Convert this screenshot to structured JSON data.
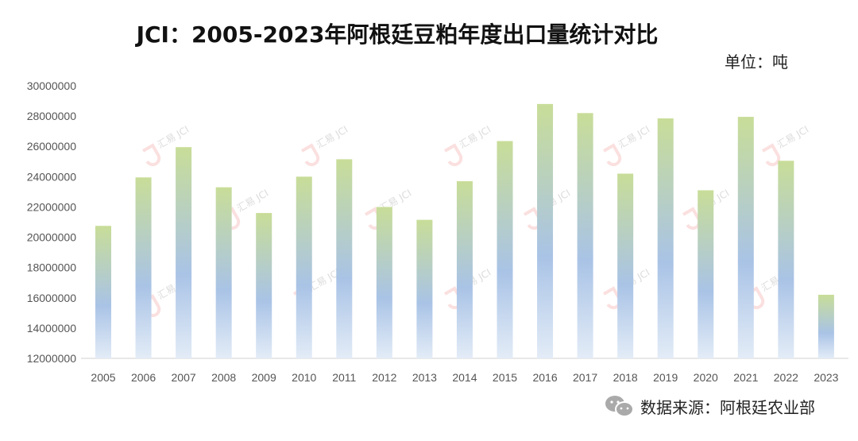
{
  "title": "JCI：2005-2023年阿根廷豆粕年度出口量统计对比",
  "unit": "单位：吨",
  "footer": {
    "source": "数据来源：阿根廷农业部",
    "icon": "wechat-icon"
  },
  "watermark": {
    "text": "汇易 JCI",
    "color": "#f4a7a7"
  },
  "colors": {
    "bar_top": "#c8dd98",
    "bar_mid": "#a9c3e6",
    "bar_bottom": "#e3ecf7"
  },
  "chart_data": {
    "type": "bar",
    "title": "JCI：2005-2023年阿根廷豆粕年度出口量统计对比",
    "ylabel": "单位：吨",
    "ylim": [
      12000000,
      30000000
    ],
    "yticks": [
      12000000,
      14000000,
      16000000,
      18000000,
      20000000,
      22000000,
      24000000,
      26000000,
      28000000,
      30000000
    ],
    "grid": false,
    "categories": [
      "2005",
      "2006",
      "2007",
      "2008",
      "2009",
      "2010",
      "2011",
      "2012",
      "2013",
      "2014",
      "2015",
      "2016",
      "2017",
      "2018",
      "2019",
      "2020",
      "2021",
      "2022",
      "2023"
    ],
    "values": [
      20750000,
      23950000,
      25950000,
      23300000,
      21600000,
      24000000,
      25150000,
      22000000,
      21150000,
      23700000,
      26350000,
      28800000,
      28200000,
      24200000,
      27850000,
      23100000,
      27950000,
      25050000,
      16200000
    ]
  }
}
